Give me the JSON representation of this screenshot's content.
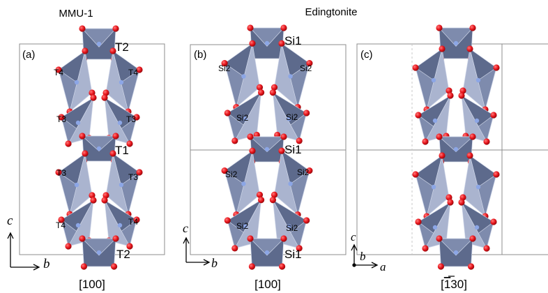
{
  "titles": {
    "left": "MMU-1",
    "right": "Edingtonite"
  },
  "panels": [
    {
      "label": "(a)",
      "direction": "[100]",
      "axes": {
        "vertical": "c",
        "horizontal": "b"
      }
    },
    {
      "label": "(b)",
      "direction": "[100]",
      "axes": {
        "vertical": "c",
        "horizontal": "b"
      }
    },
    {
      "label": "(c)",
      "direction": "[130]",
      "direction_bar_digit": "1",
      "axes": {
        "vertical": "c",
        "horizontal": "a",
        "extra": "b"
      }
    }
  ],
  "site_labels": {
    "a": {
      "T2_top": "T2",
      "T4_left": "T4",
      "T4_right": "T4",
      "T3_left": "T3",
      "T3_right": "T3",
      "T1": "T1",
      "T3_left_low": "T3",
      "T3_right_low": "T3",
      "T4_left_low": "T4",
      "T4_right_low": "T4",
      "T2_bottom": "T2"
    },
    "b": {
      "Si1_top": "Si1",
      "Si2_ul": "Si2",
      "Si2_ur": "Si2",
      "Si2_ml": "Si2",
      "Si2_mr": "Si2",
      "Si1_mid": "Si1",
      "Si2_ll": "Si2",
      "Si2_lr": "Si2",
      "Si2_bl": "Si2",
      "Si2_br": "Si2",
      "Si1_bottom": "Si1"
    }
  },
  "colors": {
    "polyhedron": "#7e8bad",
    "polyhedron_dark": "#5d6a8c",
    "polyhedron_light": "#aab4cf",
    "oxygen": "#e8141b",
    "cation": "#8ca6e6",
    "cell": "#8c8c8c"
  }
}
